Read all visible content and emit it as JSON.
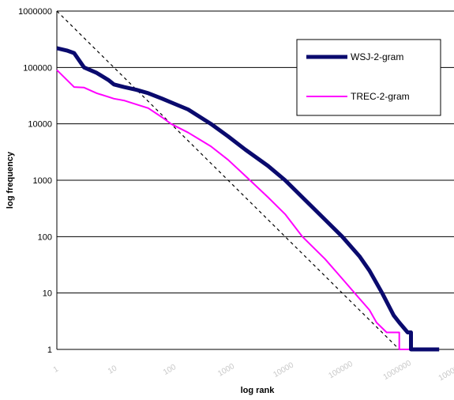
{
  "chart_data": {
    "type": "line",
    "xlabel": "log rank",
    "ylabel": "log frequency",
    "x_scale": "log",
    "y_scale": "log",
    "xlim": [
      1,
      10000000
    ],
    "ylim": [
      1,
      1000000
    ],
    "x_tick_labels": [
      "1",
      "10",
      "100",
      "1000",
      "10000",
      "100000",
      "1000000",
      "10000000"
    ],
    "y_tick_labels": [
      "1",
      "10",
      "100",
      "1000",
      "10000",
      "100000",
      "1000000"
    ],
    "grid": "horizontal",
    "legend_position": "top-right",
    "series": [
      {
        "name": "WSJ-2-gram",
        "color": "#0a0a6e",
        "style": "thick-solid",
        "x": [
          1,
          1.5,
          2,
          3,
          5,
          8,
          10,
          15,
          25,
          40,
          70,
          100,
          200,
          500,
          1000,
          2000,
          5000,
          10000,
          20000,
          50000,
          100000,
          200000,
          300000,
          500000,
          800000,
          1000000,
          1400000,
          1600000,
          1600000,
          2000000,
          3000000,
          5000000
        ],
        "y": [
          220000,
          200000,
          180000,
          100000,
          80000,
          60000,
          50000,
          45000,
          40000,
          35000,
          28000,
          24000,
          18000,
          10000,
          6000,
          3500,
          1800,
          1000,
          500,
          200,
          100,
          45,
          25,
          10,
          4,
          3,
          2,
          2,
          1,
          1,
          1,
          1
        ]
      },
      {
        "name": "TREC-2-gram",
        "color": "#ff00ff",
        "style": "thin-solid",
        "x": [
          1,
          2,
          3,
          5,
          8,
          10,
          15,
          25,
          40,
          70,
          100,
          200,
          500,
          1000,
          2000,
          5000,
          10000,
          20000,
          50000,
          100000,
          200000,
          300000,
          400000,
          600000,
          1000000,
          1000000,
          1500000
        ],
        "y": [
          90000,
          45000,
          44000,
          35000,
          30000,
          28000,
          26000,
          22000,
          19000,
          13000,
          10000,
          7000,
          4000,
          2300,
          1200,
          500,
          250,
          100,
          40,
          18,
          8,
          5,
          3,
          2,
          2,
          1,
          1
        ]
      },
      {
        "name": "",
        "color": "#000000",
        "style": "dashed",
        "x": [
          1,
          1000000
        ],
        "y": [
          1000000,
          1
        ]
      }
    ]
  }
}
